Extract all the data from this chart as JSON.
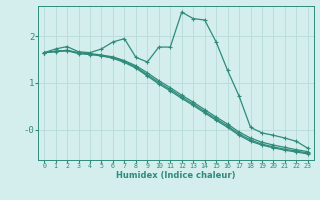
{
  "xlabel": "Humidex (Indice chaleur)",
  "bg_color": "#d4eeed",
  "line_color": "#2e8b7a",
  "grid_color": "#b8dbd8",
  "xlim": [
    -0.5,
    23.5
  ],
  "ylim": [
    -0.65,
    2.65
  ],
  "yticks": [
    0.0,
    1.0,
    2.0
  ],
  "ytick_labels": [
    "-0",
    "1",
    "2"
  ],
  "xticks": [
    0,
    1,
    2,
    3,
    4,
    5,
    6,
    7,
    8,
    9,
    10,
    11,
    12,
    13,
    14,
    15,
    16,
    17,
    18,
    19,
    20,
    21,
    22,
    23
  ],
  "series": [
    [
      1.65,
      1.73,
      1.78,
      1.67,
      1.65,
      1.73,
      1.88,
      1.95,
      1.55,
      1.45,
      1.77,
      1.77,
      2.52,
      2.38,
      2.35,
      1.88,
      1.27,
      0.72,
      0.05,
      -0.07,
      -0.12,
      -0.18,
      -0.25,
      -0.4
    ],
    [
      1.65,
      1.68,
      1.7,
      1.65,
      1.63,
      1.6,
      1.56,
      1.48,
      1.37,
      1.22,
      1.05,
      0.9,
      0.74,
      0.59,
      0.43,
      0.27,
      0.12,
      -0.05,
      -0.18,
      -0.27,
      -0.33,
      -0.38,
      -0.43,
      -0.47
    ],
    [
      1.65,
      1.68,
      1.7,
      1.64,
      1.62,
      1.59,
      1.54,
      1.46,
      1.34,
      1.18,
      1.01,
      0.86,
      0.7,
      0.55,
      0.39,
      0.23,
      0.08,
      -0.09,
      -0.22,
      -0.31,
      -0.37,
      -0.42,
      -0.46,
      -0.5
    ],
    [
      1.65,
      1.67,
      1.69,
      1.63,
      1.61,
      1.58,
      1.53,
      1.44,
      1.32,
      1.15,
      0.98,
      0.83,
      0.67,
      0.52,
      0.36,
      0.2,
      0.05,
      -0.12,
      -0.25,
      -0.33,
      -0.39,
      -0.44,
      -0.48,
      -0.52
    ]
  ]
}
